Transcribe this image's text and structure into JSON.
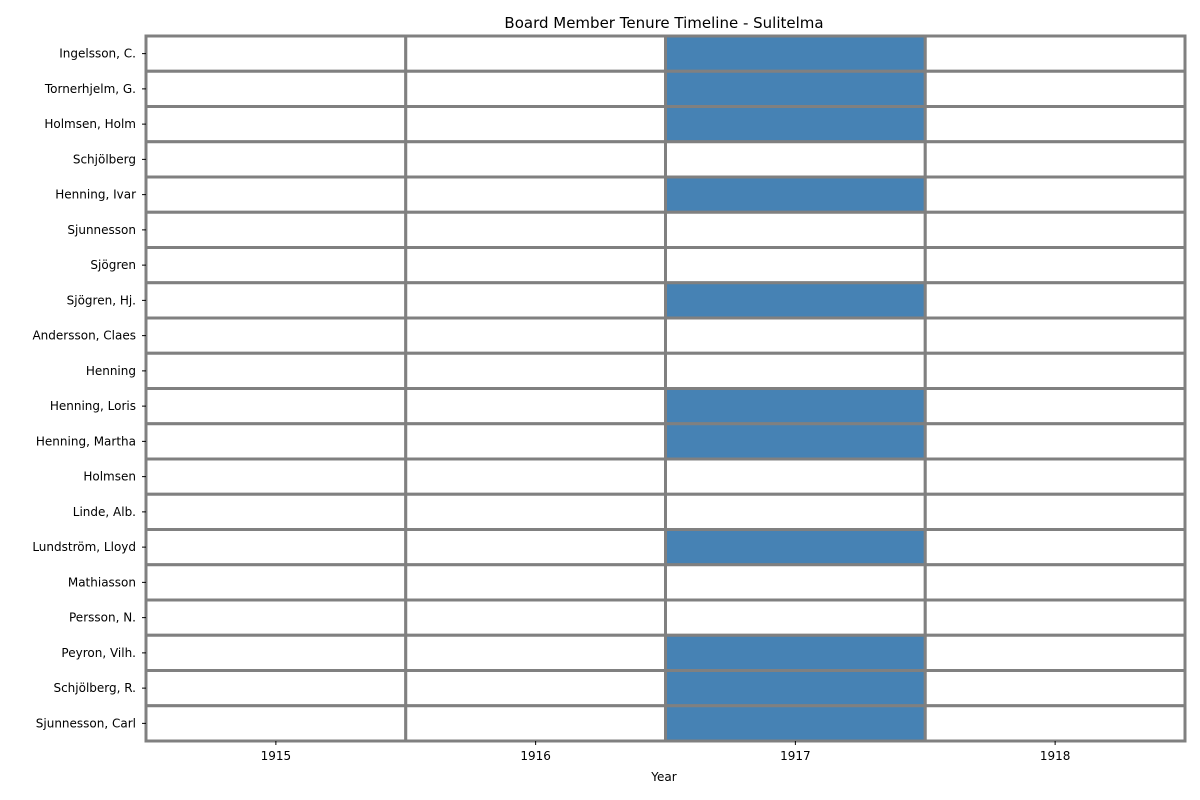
{
  "chart_data": {
    "type": "heatmap",
    "title": "Board Member Tenure Timeline - Sulitelma",
    "xlabel": "Year",
    "ylabel": "",
    "years": [
      "1915",
      "1916",
      "1917",
      "1918"
    ],
    "members": [
      "Ingelsson, C.",
      "Tornerhjelm, G.",
      "Holmsen, Holm",
      "Schjölberg",
      "Henning, Ivar",
      "Sjunnesson",
      "Sjögren",
      "Sjögren, Hj.",
      "Andersson, Claes",
      "Henning",
      "Henning, Loris",
      "Henning, Martha",
      "Holmsen",
      "Linde, Alb.",
      "Lundström, Lloyd",
      "Mathiasson",
      "Persson, N.",
      "Peyron, Vilh.",
      "Schjölberg, R.",
      "Sjunnesson, Carl"
    ],
    "matrix": [
      [
        0,
        0,
        1,
        0
      ],
      [
        0,
        0,
        1,
        0
      ],
      [
        0,
        0,
        1,
        0
      ],
      [
        0,
        0,
        0,
        0
      ],
      [
        0,
        0,
        1,
        0
      ],
      [
        0,
        0,
        0,
        0
      ],
      [
        0,
        0,
        0,
        0
      ],
      [
        0,
        0,
        1,
        0
      ],
      [
        0,
        0,
        0,
        0
      ],
      [
        0,
        0,
        0,
        0
      ],
      [
        0,
        0,
        1,
        0
      ],
      [
        0,
        0,
        1,
        0
      ],
      [
        0,
        0,
        0,
        0
      ],
      [
        0,
        0,
        0,
        0
      ],
      [
        0,
        0,
        1,
        0
      ],
      [
        0,
        0,
        0,
        0
      ],
      [
        0,
        0,
        0,
        0
      ],
      [
        0,
        0,
        1,
        0
      ],
      [
        0,
        0,
        1,
        0
      ],
      [
        0,
        0,
        1,
        0
      ]
    ],
    "colors": {
      "active": "#4682b4",
      "inactive": "#ffffff",
      "cell_border": "#808080"
    },
    "grid": true,
    "legend": "none"
  }
}
